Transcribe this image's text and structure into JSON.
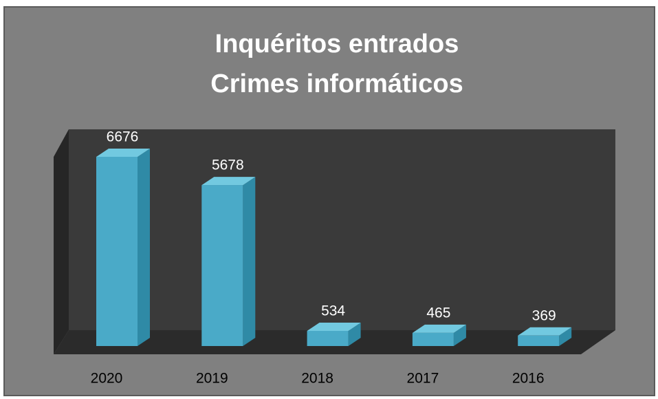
{
  "chart_data": {
    "type": "bar3d",
    "title": [
      "Inquéritos entrados",
      "Crimes informáticos"
    ],
    "categories": [
      "2020",
      "2019",
      "2018",
      "2017",
      "2016"
    ],
    "values": [
      6676,
      5678,
      534,
      465,
      369
    ],
    "color": "#4aaac8"
  }
}
